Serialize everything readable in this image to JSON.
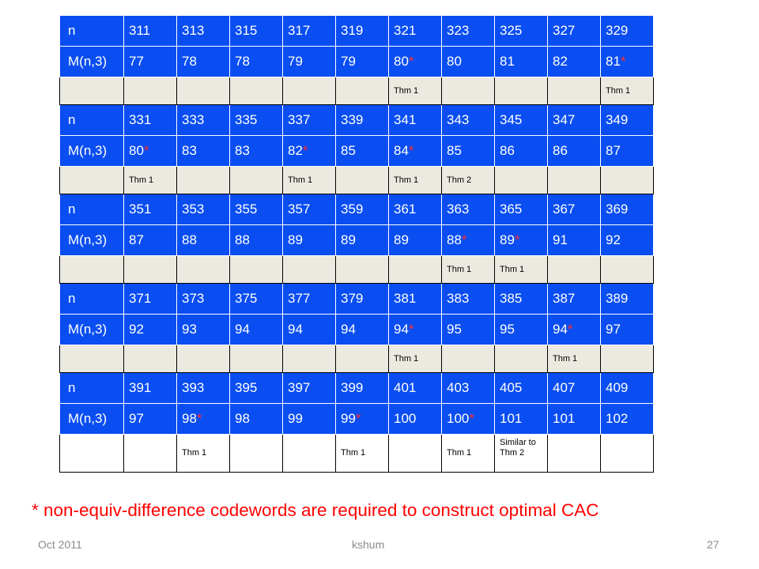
{
  "table": {
    "blocks": [
      {
        "n_label": "n",
        "n_values": [
          "311",
          "313",
          "315",
          "317",
          "319",
          "321",
          "323",
          "325",
          "327",
          "329"
        ],
        "m_label": "M(n,3)",
        "m_values": [
          {
            "v": "77",
            "star": ""
          },
          {
            "v": "78",
            "star": ""
          },
          {
            "v": "78",
            "star": ""
          },
          {
            "v": "79",
            "star": ""
          },
          {
            "v": "79",
            "star": ""
          },
          {
            "v": "80",
            "star": "*"
          },
          {
            "v": "80",
            "star": ""
          },
          {
            "v": "81",
            "star": ""
          },
          {
            "v": "82",
            "star": ""
          },
          {
            "v": "81",
            "star": "*"
          }
        ],
        "notes": [
          "",
          "",
          "",
          "",
          "",
          "Thm 1",
          "",
          "",
          "",
          "Thm 1"
        ]
      },
      {
        "n_label": "n",
        "n_values": [
          "331",
          "333",
          "335",
          "337",
          "339",
          "341",
          "343",
          "345",
          "347",
          "349"
        ],
        "m_label": "M(n,3)",
        "m_values": [
          {
            "v": "80",
            "star": "*"
          },
          {
            "v": "83",
            "star": ""
          },
          {
            "v": "83",
            "star": ""
          },
          {
            "v": "82",
            "star": "*"
          },
          {
            "v": "85",
            "star": ""
          },
          {
            "v": "84",
            "star": "*"
          },
          {
            "v": "85",
            "star": ""
          },
          {
            "v": "86",
            "star": ""
          },
          {
            "v": "86",
            "star": ""
          },
          {
            "v": "87",
            "star": ""
          }
        ],
        "notes": [
          "Thm 1",
          "",
          "",
          "Thm 1",
          "",
          "Thm 1",
          "Thm 2",
          "",
          "",
          ""
        ]
      },
      {
        "n_label": "n",
        "n_values": [
          "351",
          "353",
          "355",
          "357",
          "359",
          "361",
          "363",
          "365",
          "367",
          "369"
        ],
        "m_label": "M(n,3)",
        "m_values": [
          {
            "v": "87",
            "star": ""
          },
          {
            "v": "88",
            "star": ""
          },
          {
            "v": "88",
            "star": ""
          },
          {
            "v": "89",
            "star": ""
          },
          {
            "v": "89",
            "star": ""
          },
          {
            "v": "89",
            "star": ""
          },
          {
            "v": "88",
            "star": "*"
          },
          {
            "v": "89",
            "star": "*"
          },
          {
            "v": "91",
            "star": ""
          },
          {
            "v": "92",
            "star": ""
          }
        ],
        "notes": [
          "",
          "",
          "",
          "",
          "",
          "",
          "Thm 1",
          "Thm 1",
          "",
          ""
        ]
      },
      {
        "n_label": "n",
        "n_values": [
          "371",
          "373",
          "375",
          "377",
          "379",
          "381",
          "383",
          "385",
          "387",
          "389"
        ],
        "m_label": "M(n,3)",
        "m_values": [
          {
            "v": "92",
            "star": ""
          },
          {
            "v": "93",
            "star": ""
          },
          {
            "v": "94",
            "star": ""
          },
          {
            "v": "94",
            "star": ""
          },
          {
            "v": "94",
            "star": ""
          },
          {
            "v": "94",
            "star": "*"
          },
          {
            "v": "95",
            "star": ""
          },
          {
            "v": "95",
            "star": ""
          },
          {
            "v": "94",
            "star": "*"
          },
          {
            "v": "97",
            "star": ""
          }
        ],
        "notes": [
          "",
          "",
          "",
          "",
          "",
          "Thm 1",
          "",
          "",
          "Thm 1",
          ""
        ]
      },
      {
        "n_label": "n",
        "n_values": [
          "391",
          "393",
          "395",
          "397",
          "399",
          "401",
          "403",
          "405",
          "407",
          "409"
        ],
        "m_label": "M(n,3)",
        "m_values": [
          {
            "v": "97",
            "star": ""
          },
          {
            "v": "98",
            "star": "*"
          },
          {
            "v": "98",
            "star": ""
          },
          {
            "v": "99",
            "star": ""
          },
          {
            "v": "99",
            "star": "*"
          },
          {
            "v": "100",
            "star": ""
          },
          {
            "v": "100",
            "star": "*"
          },
          {
            "v": "101",
            "star": ""
          },
          {
            "v": "101",
            "star": ""
          },
          {
            "v": "102",
            "star": ""
          }
        ],
        "notes": [
          "",
          "Thm 1",
          "",
          "",
          "Thm 1",
          "",
          "Thm 1",
          "Similar to Thm 2",
          "",
          ""
        ]
      }
    ]
  },
  "footnote": "* non-equiv-difference codewords are required to construct optimal CAC",
  "footer": {
    "date": "Oct 2011",
    "author": "kshum",
    "page": "27"
  },
  "colors": {
    "header_blue": "#0a4ef2",
    "note_row_bg": "#ece9e1",
    "star_red": "#ff2a2a",
    "footnote_red": "#ff0000"
  }
}
